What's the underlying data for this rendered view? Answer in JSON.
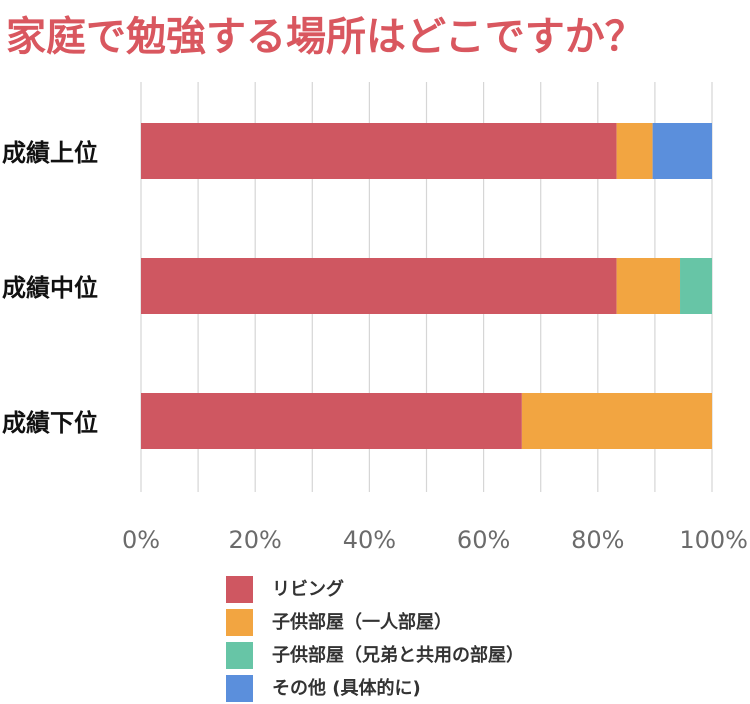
{
  "chart_data": {
    "type": "bar",
    "orientation": "horizontal",
    "stacked": true,
    "title": "家庭で勉強する場所はどこですか？",
    "categories": [
      "成績上位",
      "成績中位",
      "成績下位"
    ],
    "series": [
      {
        "name": "リビング",
        "color": "#cf5761",
        "values": [
          83.3,
          83.3,
          66.7
        ]
      },
      {
        "name": "子供部屋（一人部屋）",
        "color": "#f2a541",
        "values": [
          6.3,
          11.1,
          33.3
        ]
      },
      {
        "name": "子供部屋（兄弟と共用の部屋）",
        "color": "#67c5a6",
        "values": [
          0,
          5.6,
          0
        ]
      },
      {
        "name": "その他 (具体的に)",
        "color": "#5b8fdc",
        "values": [
          10.4,
          0,
          0
        ]
      }
    ],
    "xlim": [
      0,
      100
    ],
    "xticks": [
      "0%",
      "20%",
      "40%",
      "60%",
      "80%",
      "100%"
    ],
    "grid": true,
    "legend_position": "bottom"
  }
}
